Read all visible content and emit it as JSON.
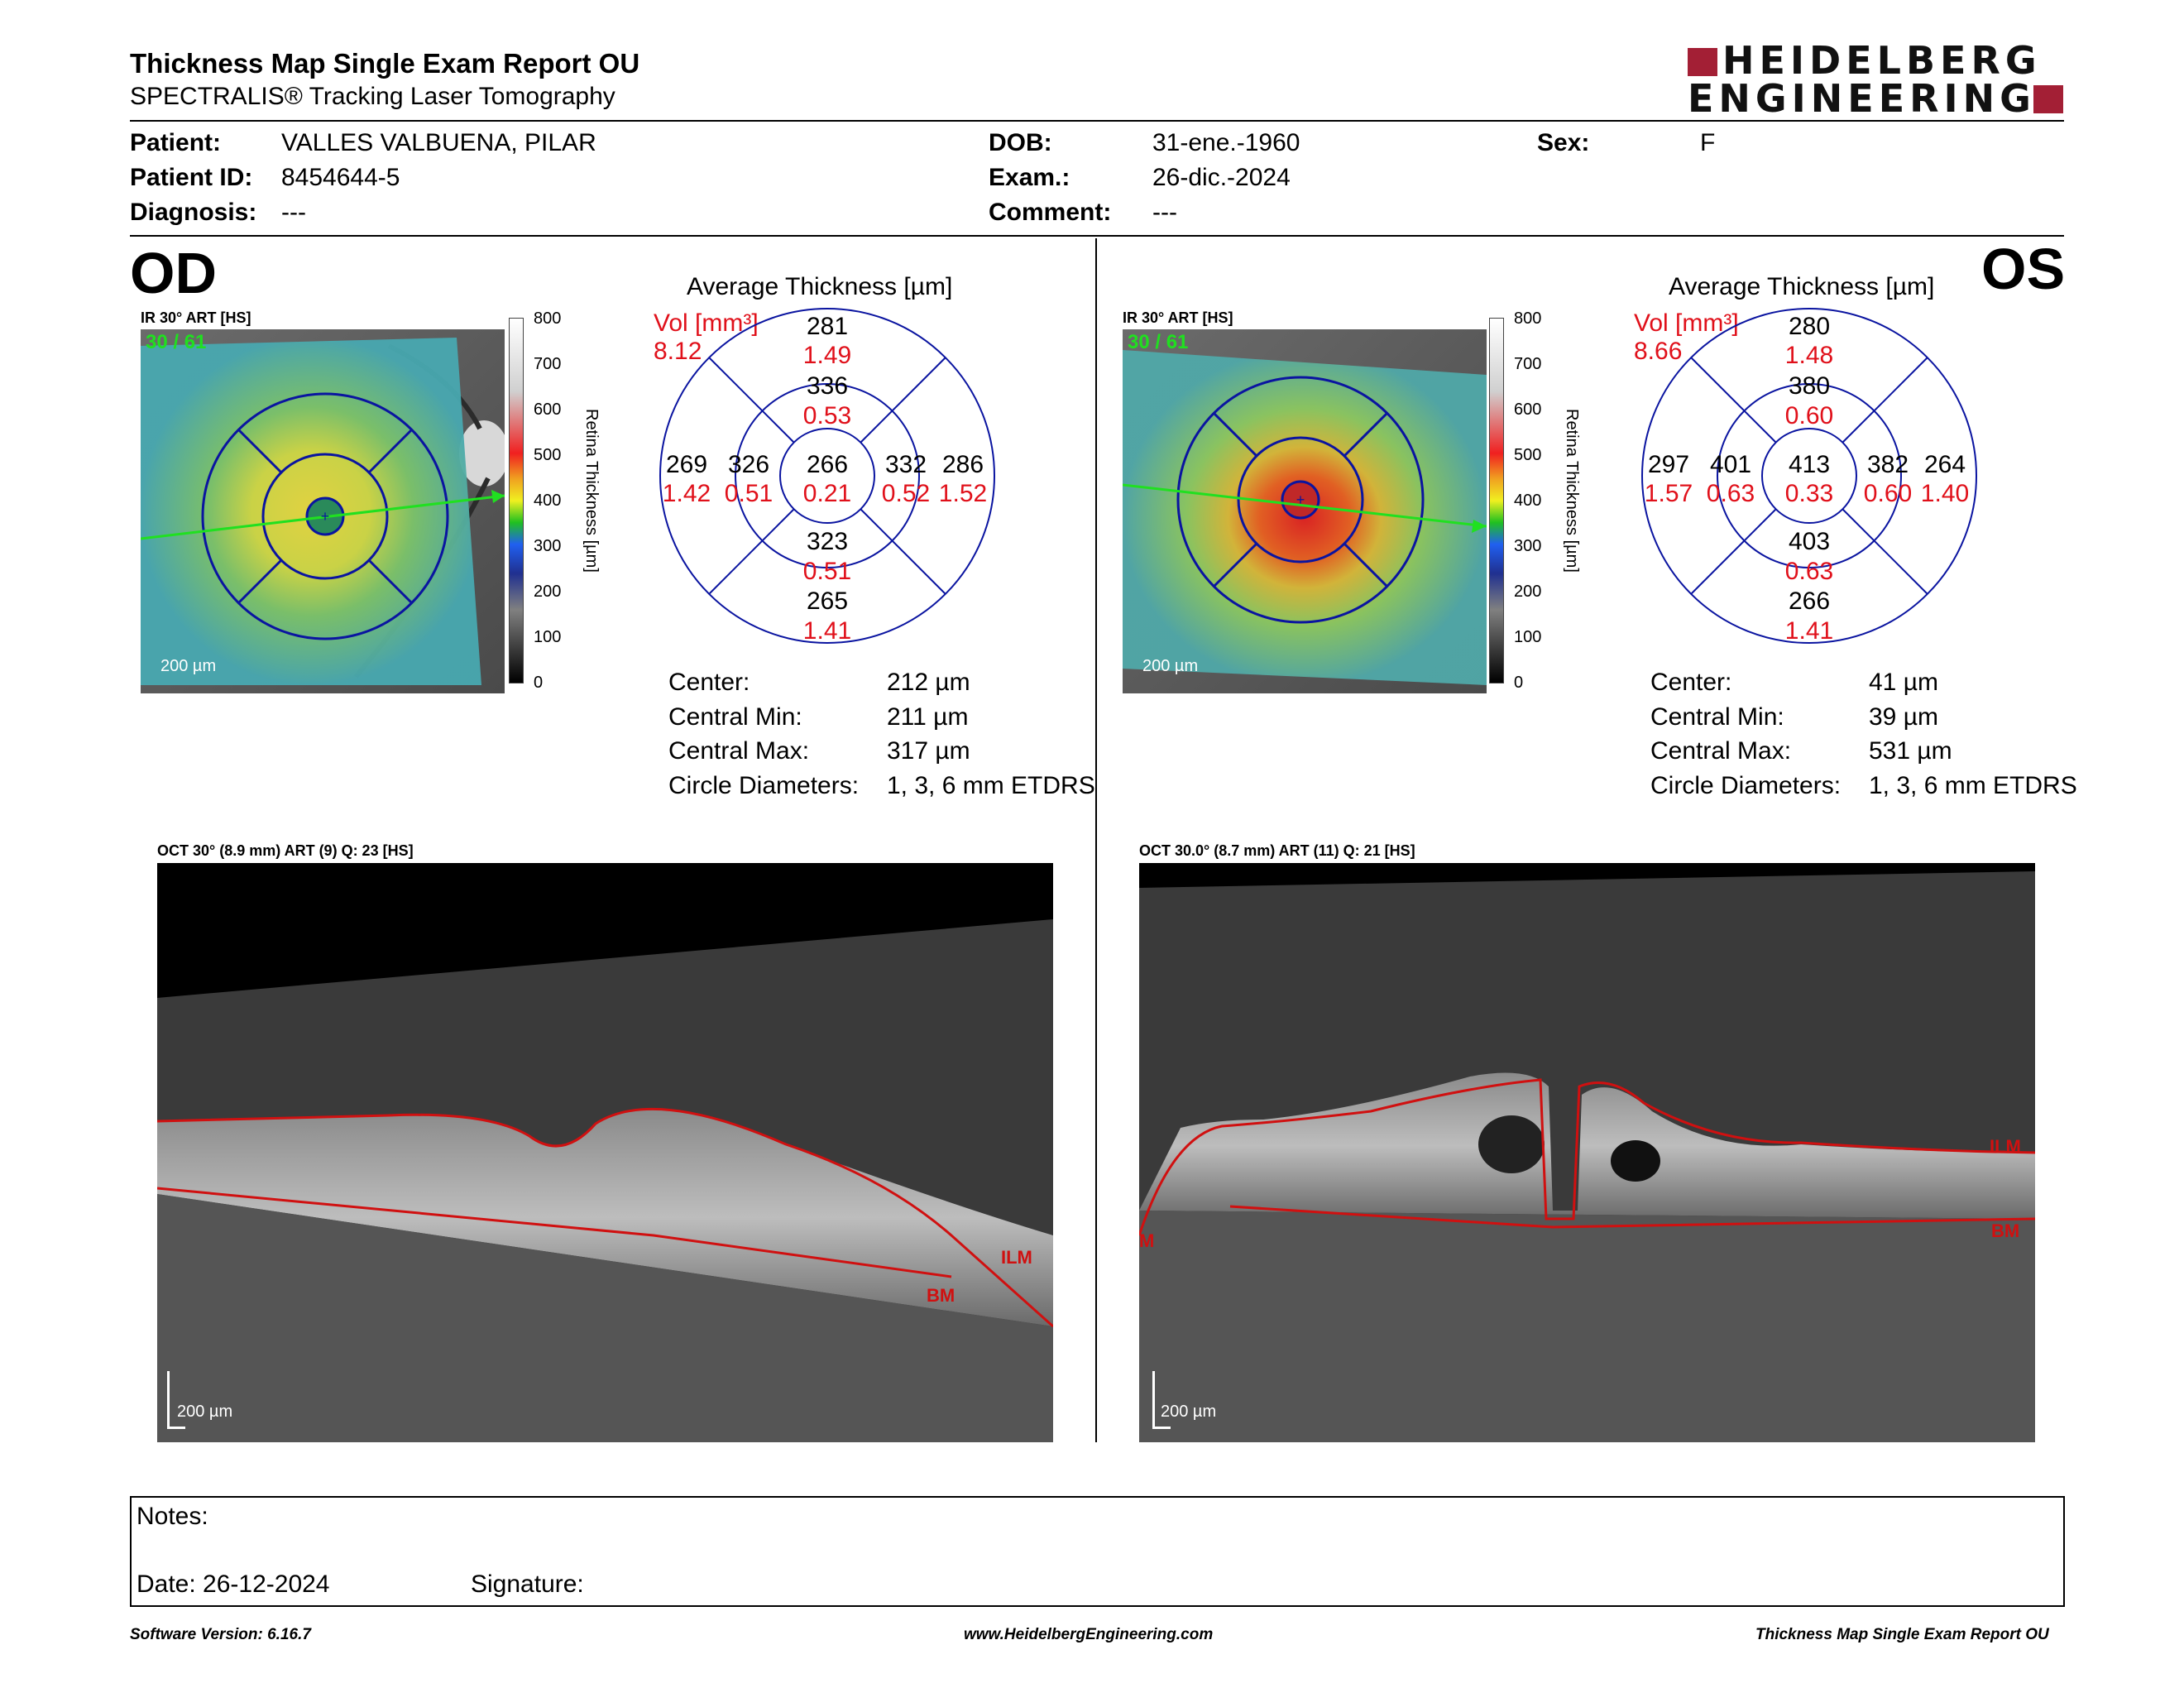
{
  "header": {
    "title": "Thickness Map Single Exam Report OU",
    "subtitle": "SPECTRALIS® Tracking Laser Tomography",
    "logo_line1": "HEIDELBERG",
    "logo_line2": "ENGINEERING"
  },
  "patient": {
    "patient_label": "Patient:",
    "patient_value": "VALLES VALBUENA, PILAR",
    "id_label": "Patient ID:",
    "id_value": "8454644-5",
    "diag_label": "Diagnosis:",
    "diag_value": "---",
    "dob_label": "DOB:",
    "dob_value": "31-ene.-1960",
    "exam_label": "Exam.:",
    "exam_value": "26-dic.-2024",
    "comment_label": "Comment:",
    "comment_value": "---",
    "sex_label": "Sex:",
    "sex_value": "F"
  },
  "od": {
    "eye": "OD",
    "ir_caption": "IR 30° ART [HS]",
    "frame": "30 / 61",
    "scale": "200 µm",
    "avg_title": "Average Thickness [µm]",
    "vol_label": "Vol [mm³]",
    "vol_value": "8.12",
    "grid": {
      "center": [
        "266",
        "0.21"
      ],
      "inner_top": [
        "336",
        "0.53"
      ],
      "inner_bottom": [
        "323",
        "0.51"
      ],
      "inner_left": [
        "326",
        "0.51"
      ],
      "inner_right": [
        "332",
        "0.52"
      ],
      "outer_top": [
        "281",
        "1.49"
      ],
      "outer_bottom": [
        "265",
        "1.41"
      ],
      "outer_left": [
        "269",
        "1.42"
      ],
      "outer_right": [
        "286",
        "1.52"
      ]
    },
    "stats": [
      [
        "Center:",
        "212 µm"
      ],
      [
        "Central Min:",
        "211 µm"
      ],
      [
        "Central Max:",
        "317 µm"
      ],
      [
        "Circle Diameters:",
        "1, 3, 6 mm ETDRS"
      ]
    ],
    "oct_caption": "OCT 30° (8.9 mm) ART (9) Q: 23 [HS]",
    "oct_scale": "200 µm",
    "ilm": "ILM",
    "bm": "BM"
  },
  "os": {
    "eye": "OS",
    "ir_caption": "IR 30° ART [HS]",
    "frame": "30 / 61",
    "scale": "200 µm",
    "avg_title": "Average Thickness [µm]",
    "vol_label": "Vol [mm³]",
    "vol_value": "8.66",
    "grid": {
      "center": [
        "413",
        "0.33"
      ],
      "inner_top": [
        "380",
        "0.60"
      ],
      "inner_bottom": [
        "403",
        "0.63"
      ],
      "inner_left": [
        "401",
        "0.63"
      ],
      "inner_right": [
        "382",
        "0.60"
      ],
      "outer_top": [
        "280",
        "1.48"
      ],
      "outer_bottom": [
        "266",
        "1.41"
      ],
      "outer_left": [
        "297",
        "1.57"
      ],
      "outer_right": [
        "264",
        "1.40"
      ]
    },
    "stats": [
      [
        "Center:",
        "41 µm"
      ],
      [
        "Central Min:",
        "39 µm"
      ],
      [
        "Central Max:",
        "531 µm"
      ],
      [
        "Circle Diameters:",
        "1, 3, 6 mm ETDRS"
      ]
    ],
    "oct_caption": "OCT 30.0° (8.7 mm) ART (11) Q: 21 [HS]",
    "oct_scale": "200 µm",
    "ilm": "ILM",
    "bm": "BM",
    "ilm_left": "M"
  },
  "colorbar": {
    "ticks": [
      "800",
      "700",
      "600",
      "500",
      "400",
      "300",
      "200",
      "100",
      "0"
    ],
    "label": "Retina Thickness [µm]"
  },
  "notes": {
    "notes_label": "Notes:",
    "date_label": "Date: 26-12-2024",
    "signature_label": "Signature:"
  },
  "footer": {
    "left": "Software Version: 6.16.7",
    "center": "www.HeidelbergEngineering.com",
    "right": "Thickness Map Single Exam Report OU"
  },
  "colors": {
    "accent": "#a31f35",
    "grid_blue": "#0a14a0",
    "value_red": "#e0101a",
    "segmentation_red": "#d01010"
  }
}
